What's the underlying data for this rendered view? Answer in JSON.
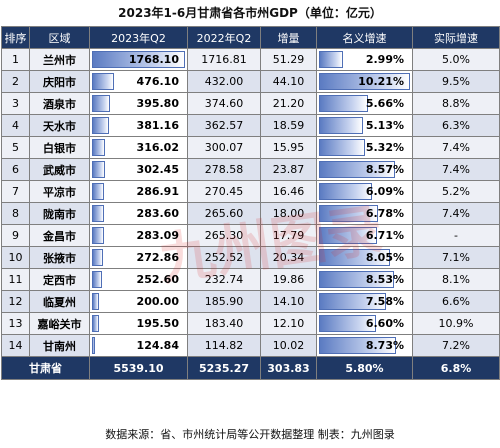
{
  "title": "2023年1-6月甘肃省各市州GDP（单位：亿元）",
  "headers": [
    "排序",
    "区域",
    "2023年Q2",
    "2022年Q2",
    "增量",
    "名义增速",
    "实际增速"
  ],
  "rows": [
    {
      "rank": "1",
      "city": "兰州市",
      "gdp2023": 1768.1,
      "gdp2023_text": "1768.10",
      "gdp2022": "1716.81",
      "increase": "51.29",
      "nominal": 2.99,
      "nominal_text": "2.99%",
      "real": "5.0%"
    },
    {
      "rank": "2",
      "city": "庆阳市",
      "gdp2023": 476.1,
      "gdp2023_text": "476.10",
      "gdp2022": "432.00",
      "increase": "44.10",
      "nominal": 10.21,
      "nominal_text": "10.21%",
      "real": "9.5%"
    },
    {
      "rank": "3",
      "city": "酒泉市",
      "gdp2023": 395.8,
      "gdp2023_text": "395.80",
      "gdp2022": "374.60",
      "increase": "21.20",
      "nominal": 5.66,
      "nominal_text": "5.66%",
      "real": "8.8%"
    },
    {
      "rank": "4",
      "city": "天水市",
      "gdp2023": 381.16,
      "gdp2023_text": "381.16",
      "gdp2022": "362.57",
      "increase": "18.59",
      "nominal": 5.13,
      "nominal_text": "5.13%",
      "real": "6.3%"
    },
    {
      "rank": "5",
      "city": "白银市",
      "gdp2023": 316.02,
      "gdp2023_text": "316.02",
      "gdp2022": "300.07",
      "increase": "15.95",
      "nominal": 5.32,
      "nominal_text": "5.32%",
      "real": "7.4%"
    },
    {
      "rank": "6",
      "city": "武威市",
      "gdp2023": 302.45,
      "gdp2023_text": "302.45",
      "gdp2022": "278.58",
      "increase": "23.87",
      "nominal": 8.57,
      "nominal_text": "8.57%",
      "real": "7.4%"
    },
    {
      "rank": "7",
      "city": "平凉市",
      "gdp2023": 286.91,
      "gdp2023_text": "286.91",
      "gdp2022": "270.45",
      "increase": "16.46",
      "nominal": 6.09,
      "nominal_text": "6.09%",
      "real": "5.2%"
    },
    {
      "rank": "8",
      "city": "陇南市",
      "gdp2023": 283.6,
      "gdp2023_text": "283.60",
      "gdp2022": "265.60",
      "increase": "18.00",
      "nominal": 6.78,
      "nominal_text": "6.78%",
      "real": "7.4%"
    },
    {
      "rank": "9",
      "city": "金昌市",
      "gdp2023": 283.09,
      "gdp2023_text": "283.09",
      "gdp2022": "265.30",
      "increase": "17.79",
      "nominal": 6.71,
      "nominal_text": "6.71%",
      "real": "-"
    },
    {
      "rank": "10",
      "city": "张掖市",
      "gdp2023": 272.86,
      "gdp2023_text": "272.86",
      "gdp2022": "252.52",
      "increase": "20.34",
      "nominal": 8.05,
      "nominal_text": "8.05%",
      "real": "7.1%"
    },
    {
      "rank": "11",
      "city": "定西市",
      "gdp2023": 252.6,
      "gdp2023_text": "252.60",
      "gdp2022": "232.74",
      "increase": "19.86",
      "nominal": 8.53,
      "nominal_text": "8.53%",
      "real": "8.1%"
    },
    {
      "rank": "12",
      "city": "临夏州",
      "gdp2023": 200.0,
      "gdp2023_text": "200.00",
      "gdp2022": "185.90",
      "increase": "14.10",
      "nominal": 7.58,
      "nominal_text": "7.58%",
      "real": "6.6%"
    },
    {
      "rank": "13",
      "city": "嘉峪关市",
      "gdp2023": 195.5,
      "gdp2023_text": "195.50",
      "gdp2022": "183.40",
      "increase": "12.10",
      "nominal": 6.6,
      "nominal_text": "6.60%",
      "real": "10.9%"
    },
    {
      "rank": "14",
      "city": "甘南州",
      "gdp2023": 124.84,
      "gdp2023_text": "124.84",
      "gdp2022": "114.82",
      "increase": "10.02",
      "nominal": 8.73,
      "nominal_text": "8.73%",
      "real": "7.2%"
    }
  ],
  "total": {
    "label": "甘肃省",
    "gdp2023": "5539.10",
    "gdp2022": "5235.27",
    "increase": "303.83",
    "nominal": "5.80%",
    "real": "6.8%"
  },
  "footer": "数据来源：省、市州统计局等公开数据整理    制表：九州图录",
  "watermark": "九州图录",
  "colors": {
    "header_bg": "#1f3864",
    "bar": "#5b7bc2",
    "row_light": "#eef0f6",
    "row_dark": "#dde2ee"
  }
}
